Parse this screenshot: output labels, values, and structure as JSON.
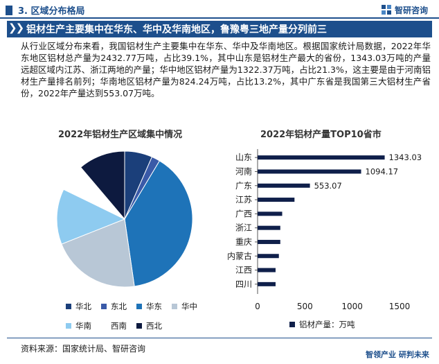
{
  "header": {
    "section_label": "3. 区域分布格局",
    "brand": "智研咨询"
  },
  "banner": {
    "title": "铝材生产主要集中在华东、华中及华南地区，鲁豫粤三地产量分列前三"
  },
  "paragraph": "从行业区域分布来看，我国铝材生产主要集中在华东、华中及华南地区。根据国家统计局数据，2022年华东地区铝材总产量为2432.77万吨，占比39.1%，其中山东是铝材生产最大的省份，1343.03万吨的产量远超区域内江苏、浙江两地的产量；华中地区铝材产量为1322.37万吨，占比21.3%，这主要是由于河南铝材生产量排名前列；华南地区铝材产量为824.24万吨，占比13.2%，其中广东省是我国第三大铝材生产省份，2022年产量达到553.07万吨。",
  "colors": {
    "brand": "#1d4f8c",
    "bar": "#0f1f4a"
  },
  "chart_data": [
    {
      "type": "pie",
      "title": "2022年铝材生产区域集中情况",
      "categories": [
        "华北",
        "东北",
        "华东",
        "华中",
        "华南",
        "西南",
        "西北"
      ],
      "values": [
        6.6,
        2.0,
        39.1,
        21.3,
        13.2,
        6.6,
        11.2
      ],
      "colors": [
        "#1b3f7a",
        "#3a5aa8",
        "#1e73b8",
        "#b8c7d6",
        "#8ecbf0",
        "#ffffff",
        "#0d1a3f"
      ],
      "legend_position": "bottom"
    },
    {
      "type": "bar",
      "orientation": "horizontal",
      "title": "2022年铝材产量TOP10省市",
      "categories": [
        "山东",
        "河南",
        "广东",
        "江苏",
        "广西",
        "浙江",
        "重庆",
        "内蒙古",
        "江西",
        "四川"
      ],
      "values": [
        1343.03,
        1094.17,
        553.07,
        390,
        260,
        240,
        240,
        225,
        190,
        190
      ],
      "data_labels": [
        "1343.03",
        "1094.17",
        "553.07",
        "",
        "",
        "",
        "",
        "",
        "",
        ""
      ],
      "xlim": [
        0,
        1500
      ],
      "xticks": [
        "0",
        "500",
        "1000",
        "1500"
      ],
      "legend": "铝材产量：万吨",
      "legend_position": "bottom"
    }
  ],
  "footer": {
    "source": "资料来源：国家统计局、智研咨询",
    "brand": "智领产业 研判未来"
  }
}
